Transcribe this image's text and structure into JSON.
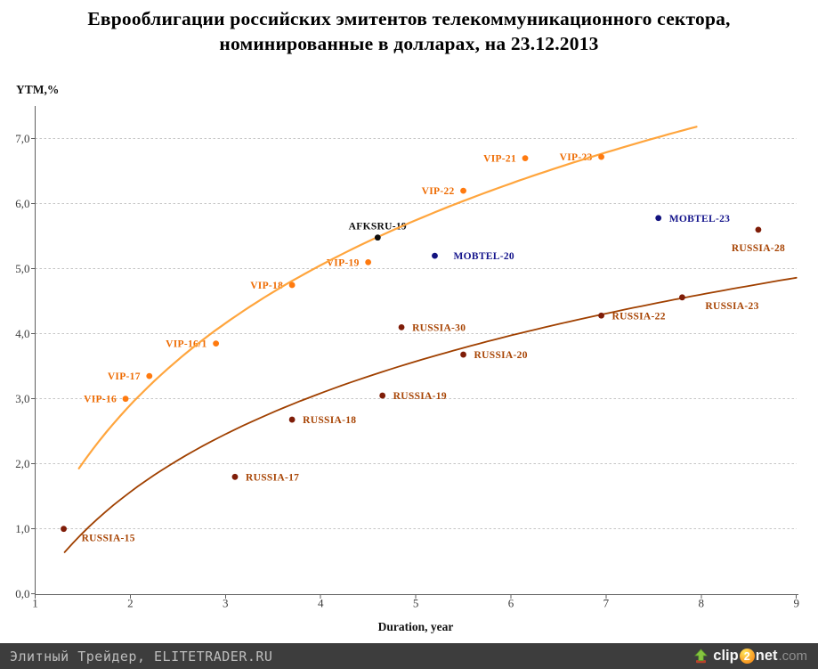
{
  "title": {
    "line1": "Еврооблигации российских эмитентов телекоммуникационного сектора,",
    "line2": "номинированные в долларах, на 23.12.2013"
  },
  "chart_data": {
    "type": "scatter",
    "title": "Еврооблигации российских эмитентов телекоммуникационного сектора, номинированные в долларах, на 23.12.2013",
    "xlabel": "Duration, year",
    "ylabel": "YTM,%",
    "xlim": [
      1,
      9
    ],
    "ylim": [
      0,
      7.5
    ],
    "x_ticks": [
      "1",
      "2",
      "3",
      "4",
      "5",
      "6",
      "7",
      "8",
      "9"
    ],
    "y_ticks": [
      {
        "v": 0,
        "label": "0,0"
      },
      {
        "v": 1,
        "label": "1,0"
      },
      {
        "v": 2,
        "label": "2,0"
      },
      {
        "v": 3,
        "label": "3,0"
      },
      {
        "v": 4,
        "label": "4,0"
      },
      {
        "v": 5,
        "label": "5,0"
      },
      {
        "v": 6,
        "label": "6,0"
      },
      {
        "v": 7,
        "label": "7,0"
      }
    ],
    "grid": "horizontal-dashed",
    "legend": "none",
    "series": [
      {
        "name": "VIP",
        "point_color": "#ff7a0f",
        "label_color": "#ee6b02",
        "points": [
          {
            "label": "VIP-16",
            "x": 1.95,
            "y": 3.0,
            "label_pos": "left"
          },
          {
            "label": "VIP-17",
            "x": 2.2,
            "y": 3.35,
            "label_pos": "left"
          },
          {
            "label": "VIP-16/1",
            "x": 2.9,
            "y": 3.85,
            "label_pos": "left"
          },
          {
            "label": "VIP-18",
            "x": 3.7,
            "y": 4.75,
            "label_pos": "left"
          },
          {
            "label": "VIP-19",
            "x": 4.5,
            "y": 5.1,
            "label_pos": "left"
          },
          {
            "label": "VIP-22",
            "x": 5.5,
            "y": 6.2,
            "label_pos": "left"
          },
          {
            "label": "VIP-21",
            "x": 6.15,
            "y": 6.7,
            "label_pos": "left"
          },
          {
            "label": "VIP-23",
            "x": 6.95,
            "y": 6.72,
            "label_pos": "left"
          }
        ]
      },
      {
        "name": "RUSSIA",
        "point_color": "#7f1d08",
        "label_color": "#a84505",
        "points": [
          {
            "label": "RUSSIA-15",
            "x": 1.3,
            "y": 1.0,
            "label_pos": "below-right",
            "label_dx": 20,
            "label_dy": 14
          },
          {
            "label": "RUSSIA-17",
            "x": 3.1,
            "y": 1.8,
            "label_pos": "right"
          },
          {
            "label": "RUSSIA-18",
            "x": 3.7,
            "y": 2.68,
            "label_pos": "right"
          },
          {
            "label": "RUSSIA-19",
            "x": 4.65,
            "y": 3.05,
            "label_pos": "right"
          },
          {
            "label": "RUSSIA-30",
            "x": 4.85,
            "y": 4.1,
            "label_pos": "right"
          },
          {
            "label": "RUSSIA-20",
            "x": 5.5,
            "y": 3.68,
            "label_pos": "right"
          },
          {
            "label": "RUSSIA-22",
            "x": 6.95,
            "y": 4.28,
            "label_pos": "right"
          },
          {
            "label": "RUSSIA-23",
            "x": 7.8,
            "y": 4.56,
            "label_pos": "below-right",
            "label_dx": 26,
            "label_dy": 13
          },
          {
            "label": "RUSSIA-28",
            "x": 8.6,
            "y": 5.6,
            "label_pos": "below"
          }
        ]
      },
      {
        "name": "MOBTEL",
        "point_color": "#13137f",
        "label_color": "#15158c",
        "points": [
          {
            "label": "MOBTEL-20",
            "x": 5.2,
            "y": 5.2,
            "label_pos": "right",
            "label_dx": 21
          },
          {
            "label": "MOBTEL-23",
            "x": 7.55,
            "y": 5.78,
            "label_pos": "right"
          }
        ]
      },
      {
        "name": "AFKSRU",
        "point_color": "#0d0d0d",
        "label_color": "#0d0d0d",
        "points": [
          {
            "label": "AFKSRU-19",
            "x": 4.6,
            "y": 5.48,
            "label_pos": "above"
          }
        ]
      }
    ],
    "trendlines": [
      {
        "series": "VIP",
        "color": "#ffa53d",
        "fit": "logarithmic",
        "a": 0.757,
        "b": 3.1,
        "x_from": 1.46,
        "x_to": 7.95
      },
      {
        "series": "RUSSIA",
        "color": "#a04000",
        "fit": "logarithmic",
        "a": 0.05,
        "b": 2.19,
        "x_from": 1.31,
        "x_to": 9.0
      }
    ]
  },
  "footer": {
    "site_label": "Элитный Трейдер, ELITETRADER.RU",
    "logo": {
      "clip": "clip",
      "two": "2",
      "net": "net",
      "com": ".com"
    }
  }
}
